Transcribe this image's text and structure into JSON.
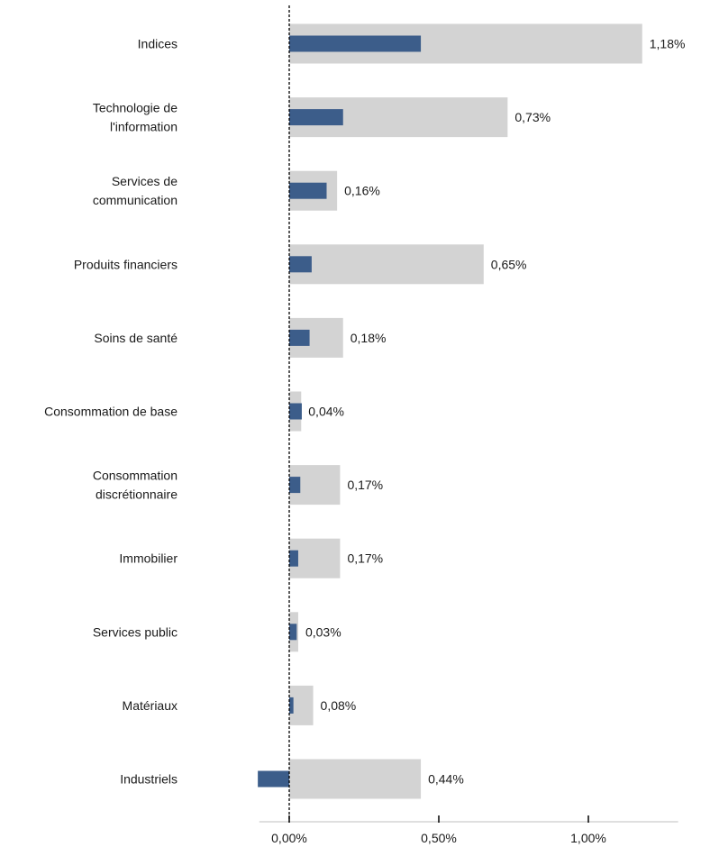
{
  "chart_data": {
    "type": "bar",
    "orientation": "horizontal",
    "categories": [
      [
        "Indices"
      ],
      [
        "Technologie de",
        "l'information"
      ],
      [
        "Services de",
        "communication"
      ],
      [
        "Produits financiers"
      ],
      [
        "Soins de santé"
      ],
      [
        "Consommation de base"
      ],
      [
        "Consommation",
        "discrétionnaire"
      ],
      [
        "Immobilier"
      ],
      [
        "Services public"
      ],
      [
        "Matériaux"
      ],
      [
        "Industriels"
      ]
    ],
    "series": [
      {
        "color": "#d3d3d3",
        "values": [
          1.18,
          0.73,
          0.16,
          0.65,
          0.18,
          0.04,
          0.17,
          0.17,
          0.03,
          0.08,
          0.44
        ],
        "labels": [
          "1,18%",
          "0,73%",
          "0,16%",
          "0,65%",
          "0,18%",
          "0,04%",
          "0,17%",
          "0,17%",
          "0,03%",
          "0,08%",
          "0,44%"
        ]
      },
      {
        "color": "#3c5d8a",
        "values": [
          0.44,
          0.18,
          0.125,
          0.075,
          0.068,
          0.042,
          0.037,
          0.03,
          0.025,
          0.014,
          -0.105
        ]
      }
    ],
    "xlim": [
      -0.1,
      1.3
    ],
    "ticks": [
      {
        "value": 0,
        "label": "0,00%"
      },
      {
        "value": 0.5,
        "label": "0,50%"
      },
      {
        "value": 1.0,
        "label": "1,00%"
      }
    ],
    "grid": false,
    "legend": "none"
  }
}
